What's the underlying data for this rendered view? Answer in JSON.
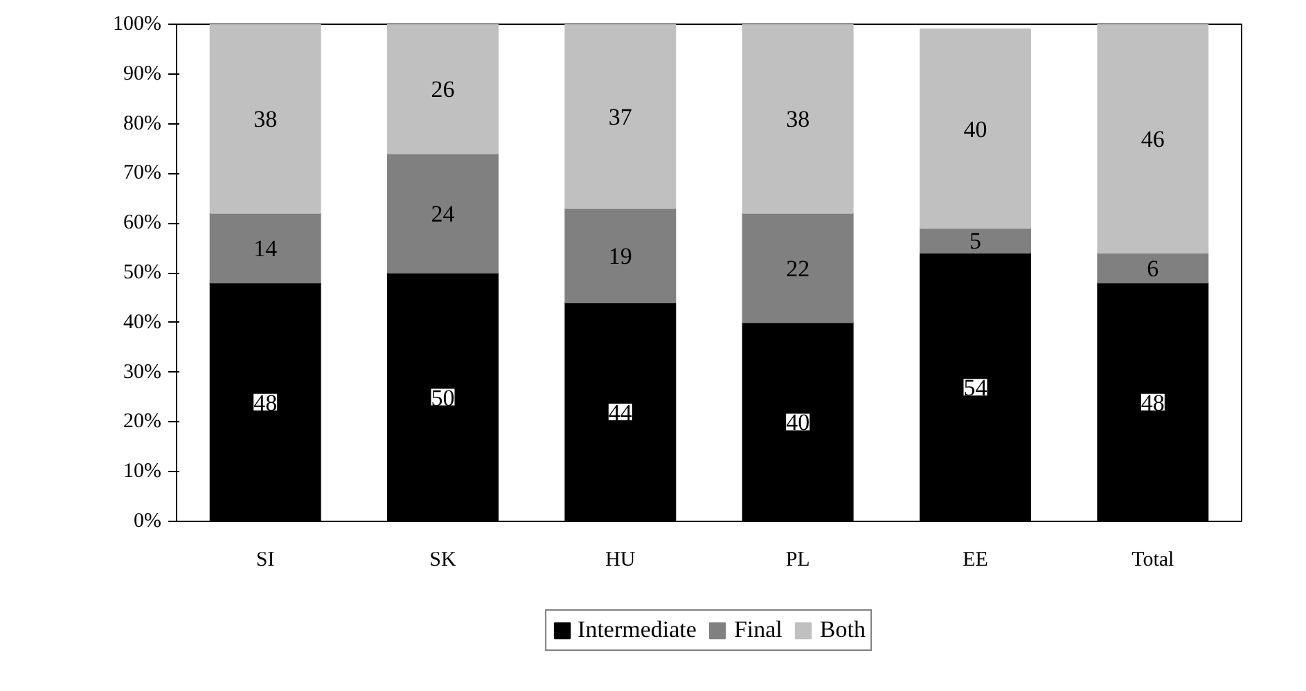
{
  "chart_data": {
    "type": "bar",
    "stacked": true,
    "categories": [
      "SI",
      "SK",
      "HU",
      "PL",
      "EE",
      "Total"
    ],
    "series": [
      {
        "name": "Intermediate",
        "color": "#000000",
        "values": [
          48,
          50,
          44,
          40,
          54,
          48
        ]
      },
      {
        "name": "Final",
        "color": "#808080",
        "values": [
          14,
          24,
          19,
          22,
          5,
          6
        ]
      },
      {
        "name": "Both",
        "color": "#c0c0c0",
        "values": [
          38,
          26,
          37,
          38,
          40,
          46
        ]
      }
    ],
    "ylim": [
      0,
      100
    ],
    "yticks": [
      {
        "value": 0,
        "label": "0%"
      },
      {
        "value": 10,
        "label": "10%"
      },
      {
        "value": 20,
        "label": "20%"
      },
      {
        "value": 30,
        "label": "30%"
      },
      {
        "value": 40,
        "label": "40%"
      },
      {
        "value": 50,
        "label": "50%"
      },
      {
        "value": 60,
        "label": "60%"
      },
      {
        "value": 70,
        "label": "70%"
      },
      {
        "value": 80,
        "label": "80%"
      },
      {
        "value": 90,
        "label": "90%"
      },
      {
        "value": 100,
        "label": "100%"
      }
    ],
    "data_labels": true,
    "grid": false,
    "legend": "bottom"
  }
}
